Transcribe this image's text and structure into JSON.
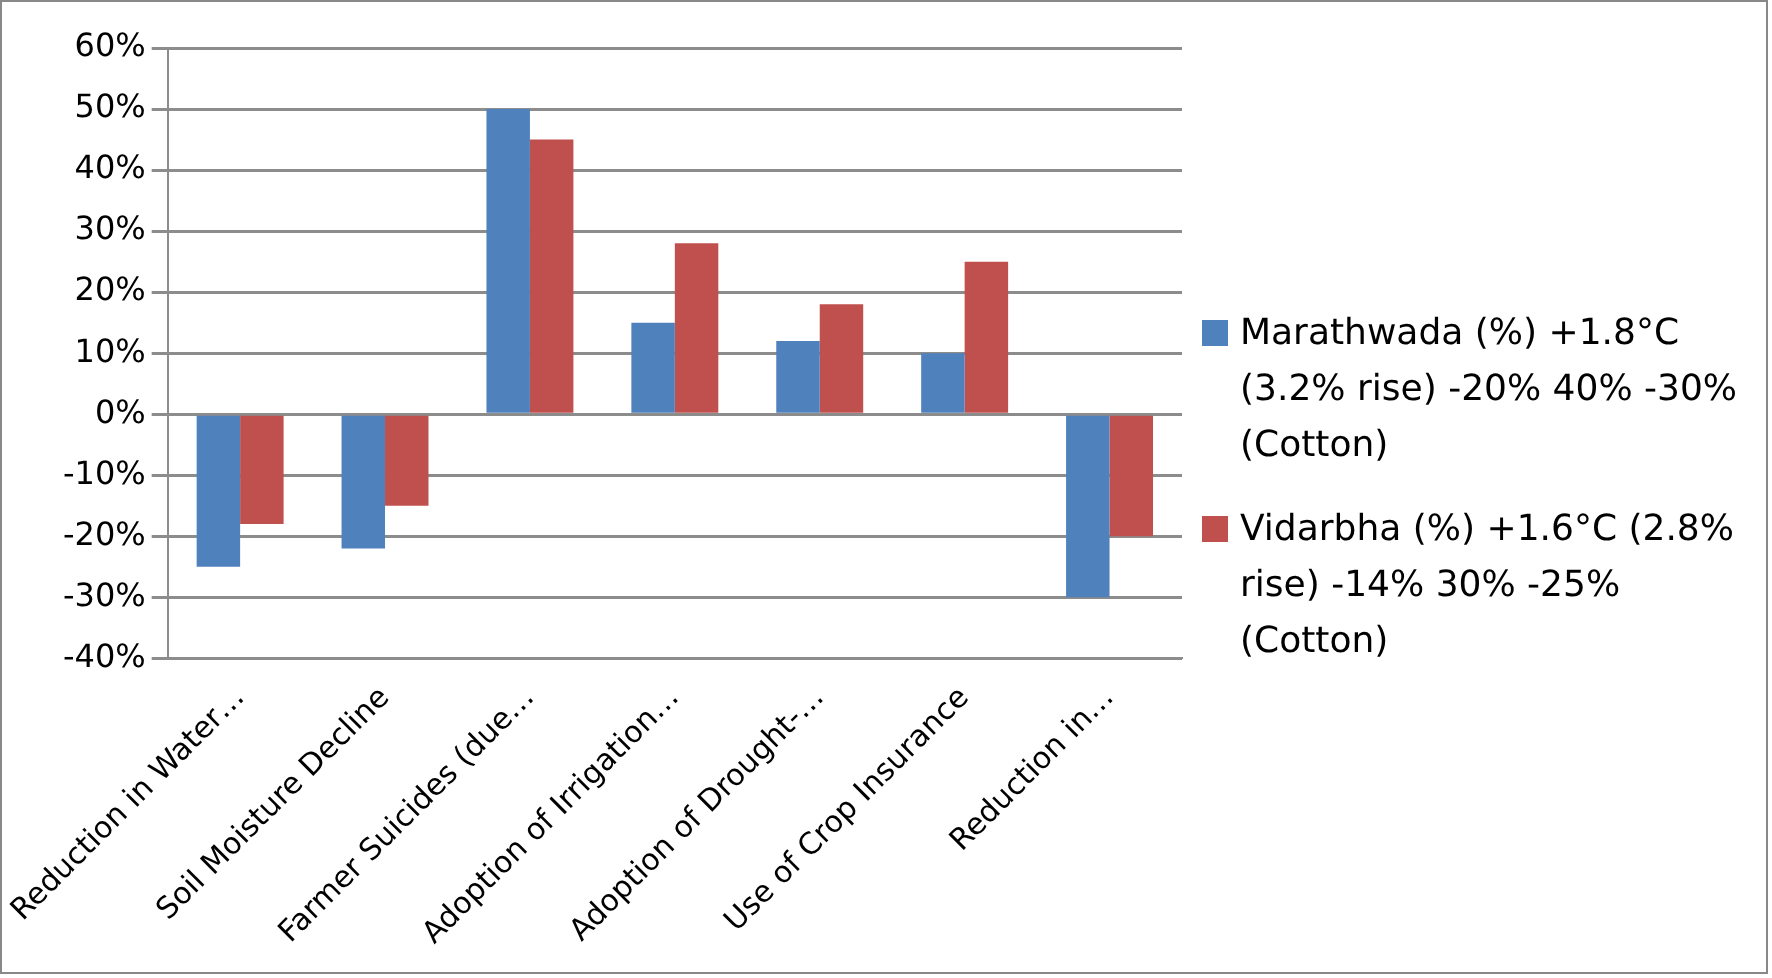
{
  "chart_data": {
    "type": "bar",
    "categories": [
      "Reduction in Water…",
      "Soil Moisture Decline",
      "Farmer Suicides (due…",
      "Adoption of Irrigation…",
      "Adoption of Drought-…",
      "Use of Crop Insurance",
      "Reduction in…"
    ],
    "series": [
      {
        "name": "Marathwada (%) +1.8°C (3.2% rise) -20% 40% -30% (Cotton)",
        "color": "#4f81bd",
        "values": [
          -25,
          -22,
          50,
          15,
          12,
          10,
          -30
        ]
      },
      {
        "name": "Vidarbha (%) +1.6°C (2.8% rise) -14% 30% -25% (Cotton)",
        "color": "#c0504d",
        "values": [
          -18,
          -15,
          45,
          28,
          18,
          25,
          -20
        ]
      }
    ],
    "ylim": [
      -40,
      60
    ],
    "yticks": [
      {
        "value": -40,
        "label": "-40%"
      },
      {
        "value": -30,
        "label": "-30%"
      },
      {
        "value": -20,
        "label": "-20%"
      },
      {
        "value": -10,
        "label": "-10%"
      },
      {
        "value": 0,
        "label": "0%"
      },
      {
        "value": 10,
        "label": "10%"
      },
      {
        "value": 20,
        "label": "20%"
      },
      {
        "value": 30,
        "label": "30%"
      },
      {
        "value": 40,
        "label": "40%"
      },
      {
        "value": 50,
        "label": "50%"
      },
      {
        "value": 60,
        "label": "60%"
      }
    ],
    "grid": "y",
    "legend": "right"
  }
}
